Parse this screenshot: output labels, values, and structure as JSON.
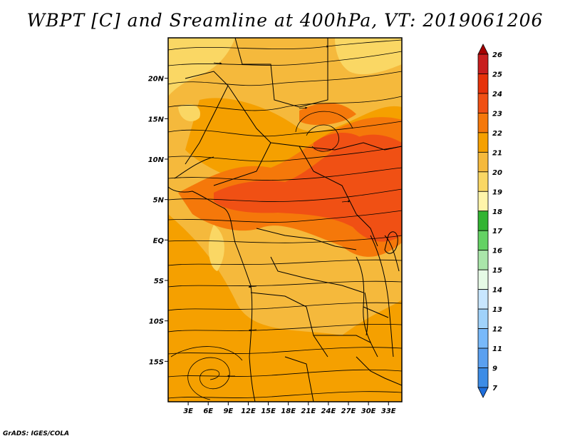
{
  "title": "WBPT [C] and Sreamline at 400hPa, VT: 2019061206",
  "credit": "GrADS: IGES/COLA",
  "map": {
    "variable": "Wet-bulb potential temperature",
    "level": "400hPa",
    "valid_time": "2019061206",
    "lat_ticks": [
      {
        "label": "20N",
        "lat": 20
      },
      {
        "label": "15N",
        "lat": 15
      },
      {
        "label": "10N",
        "lat": 10
      },
      {
        "label": "5N",
        "lat": 5
      },
      {
        "label": "EQ",
        "lat": 0
      },
      {
        "label": "5S",
        "lat": -5
      },
      {
        "label": "10S",
        "lat": -10
      },
      {
        "label": "15S",
        "lat": -15
      }
    ],
    "lon_ticks": [
      {
        "label": "3E",
        "lon": 3
      },
      {
        "label": "6E",
        "lon": 6
      },
      {
        "label": "9E",
        "lon": 9
      },
      {
        "label": "12E",
        "lon": 12
      },
      {
        "label": "15E",
        "lon": 15
      },
      {
        "label": "18E",
        "lon": 18
      },
      {
        "label": "21E",
        "lon": 21
      },
      {
        "label": "24E",
        "lon": 24
      },
      {
        "label": "27E",
        "lon": 27
      },
      {
        "label": "30E",
        "lon": 30
      },
      {
        "label": "33E",
        "lon": 33
      }
    ],
    "lat_range": [
      -20,
      25
    ],
    "lon_range": [
      0,
      35
    ]
  },
  "colorbar": {
    "labels": [
      "26",
      "25",
      "24",
      "23",
      "22",
      "21",
      "20",
      "19",
      "18",
      "17",
      "16",
      "15",
      "14",
      "13",
      "12",
      "11",
      "9",
      "7"
    ],
    "colors": [
      "#a50000",
      "#c81e1e",
      "#e6320a",
      "#f05014",
      "#f5780a",
      "#f5a000",
      "#f5b93c",
      "#fad764",
      "#fff5aa",
      "#32b432",
      "#64d264",
      "#aae6aa",
      "#e6fae6",
      "#c8e6ff",
      "#a0d2fa",
      "#78b9fa",
      "#5aa0f0",
      "#3c8ce6",
      "#1e6edc"
    ]
  }
}
